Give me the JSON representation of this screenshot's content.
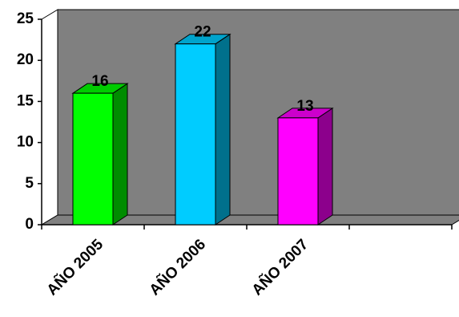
{
  "chart_data": {
    "type": "bar3d",
    "categories": [
      "AÑO 2005",
      "AÑO 2006",
      "AÑO 2007",
      null
    ],
    "values": [
      16,
      22,
      13,
      null
    ],
    "colors": [
      "#00ff00",
      "#00ccff",
      "#ff00ff",
      null
    ],
    "ylim": [
      0,
      25
    ],
    "yticks": [
      0,
      5,
      10,
      15,
      20,
      25
    ],
    "data_labels": true
  }
}
